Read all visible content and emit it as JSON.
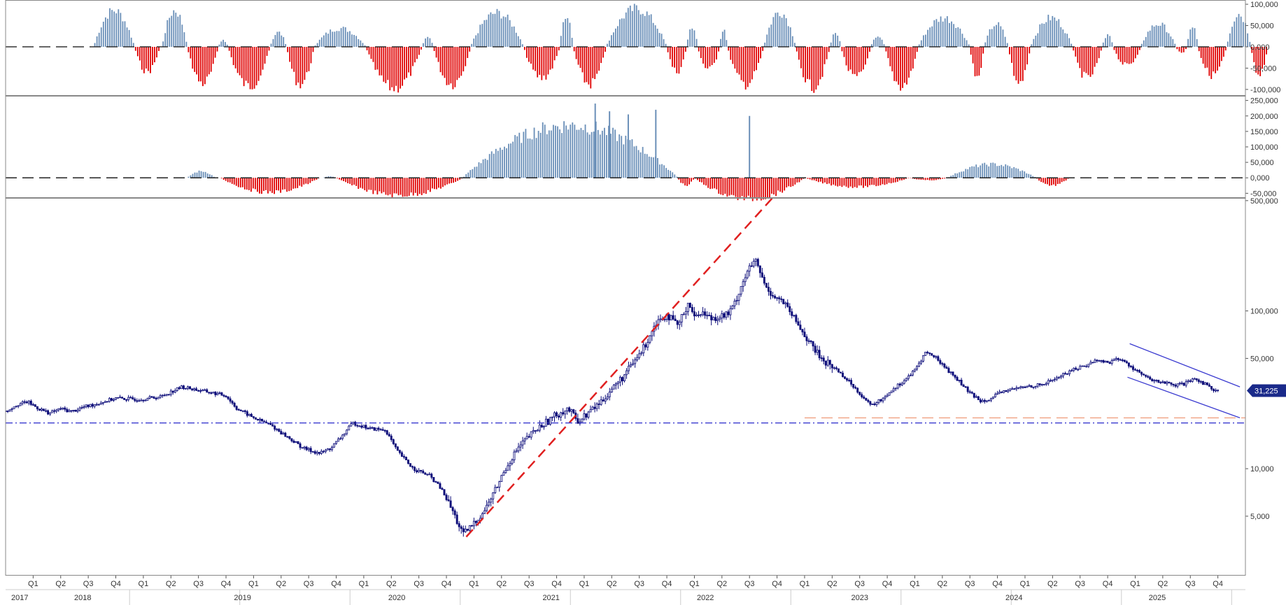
{
  "chart_data": [
    {
      "type": "bar",
      "panel": "oscillator-1",
      "ylim": [
        -115000,
        110000
      ],
      "ytick_labels": [
        "100,000",
        "50,000",
        "0,000",
        "-50,000",
        "-100,000"
      ],
      "ytick_values": [
        100000,
        50000,
        0,
        -50000,
        -100000
      ],
      "zero_line": "dashed",
      "colors": {
        "positive": "#6a8fb8",
        "negative": "#e00000"
      },
      "cycles": [
        {
          "start": 2017.8,
          "end": 2018.17,
          "peak": 88000
        },
        {
          "start": 2018.17,
          "end": 2018.4,
          "peak": -60000
        },
        {
          "start": 2018.42,
          "end": 2018.65,
          "peak": 88000
        },
        {
          "start": 2018.65,
          "end": 2018.93,
          "peak": -88000
        },
        {
          "start": 2018.93,
          "end": 2019.02,
          "peak": 15000
        },
        {
          "start": 2019.02,
          "end": 2019.4,
          "peak": -95000
        },
        {
          "start": 2019.4,
          "end": 2019.55,
          "peak": 35000
        },
        {
          "start": 2019.55,
          "end": 2019.8,
          "peak": -90000
        },
        {
          "start": 2019.8,
          "end": 2020.27,
          "peak": 45000
        },
        {
          "start": 2020.27,
          "end": 2020.78,
          "peak": -100000
        },
        {
          "start": 2020.78,
          "end": 2020.88,
          "peak": 25000
        },
        {
          "start": 2020.88,
          "end": 2021.22,
          "peak": -90000
        },
        {
          "start": 2021.22,
          "end": 2021.7,
          "peak": 82000
        },
        {
          "start": 2021.7,
          "end": 2022.03,
          "peak": -75000
        },
        {
          "start": 2022.03,
          "end": 2022.15,
          "peak": 80000
        },
        {
          "start": 2022.15,
          "end": 2022.45,
          "peak": -90000
        },
        {
          "start": 2022.45,
          "end": 2023.0,
          "peak": 92000
        },
        {
          "start": 2023.0,
          "end": 2023.18,
          "peak": -60000
        },
        {
          "start": 2023.18,
          "end": 2023.28,
          "peak": 50000
        },
        {
          "start": 2023.28,
          "end": 2023.48,
          "peak": -55000
        },
        {
          "start": 2023.48,
          "end": 2023.55,
          "peak": 40000
        },
        {
          "start": 2023.55,
          "end": 2023.88,
          "peak": -90000
        },
        {
          "start": 2023.88,
          "end": 2024.17,
          "peak": 85000
        },
        {
          "start": 2024.17,
          "end": 2024.48,
          "peak": -97000
        },
        {
          "start": 2024.48,
          "end": 2024.58,
          "peak": 35000
        },
        {
          "start": 2024.58,
          "end": 2024.85,
          "peak": -75000
        },
        {
          "start": 2024.85,
          "end": 2024.98,
          "peak": 28000
        },
        {
          "start": 2024.98,
          "end": 2025.28,
          "peak": -95000
        },
        {
          "start": 2025.28,
          "end": 2025.75,
          "peak": 70000
        },
        {
          "start": 2025.75,
          "end": 2025.88,
          "peak": -72000
        },
        {
          "start": 2025.88,
          "end": 2026.1,
          "peak": 55000
        },
        {
          "start": 2026.1,
          "end": 2026.3,
          "peak": -88000
        },
        {
          "start": 2026.3,
          "end": 2026.68,
          "peak": 70000
        },
        {
          "start": 2026.68,
          "end": 2026.95,
          "peak": -75000
        },
        {
          "start": 2026.95,
          "end": 2027.05,
          "peak": 30000
        },
        {
          "start": 2027.05,
          "end": 2027.3,
          "peak": -45000
        },
        {
          "start": 2027.3,
          "end": 2027.62,
          "peak": 55000
        },
        {
          "start": 2027.62,
          "end": 2027.72,
          "peak": -15000
        },
        {
          "start": 2027.72,
          "end": 2027.82,
          "peak": 50000
        },
        {
          "start": 2027.82,
          "end": 2028.08,
          "peak": -68000
        },
        {
          "start": 2028.08,
          "end": 2028.3,
          "peak": 80000
        },
        {
          "start": 2028.3,
          "end": 2028.45,
          "peak": -72000
        }
      ]
    },
    {
      "type": "bar",
      "panel": "oscillator-2",
      "ylim": [
        -65000,
        265000
      ],
      "ytick_labels": [
        "250,000",
        "200,000",
        "150,000",
        "100,000",
        "50,000",
        "0,000",
        "-50,000"
      ],
      "ytick_values": [
        250000,
        200000,
        150000,
        100000,
        50000,
        0,
        -50000
      ],
      "zero_line": "dashed",
      "colors": {
        "positive": "#6a8fb8",
        "negative": "#e00000"
      },
      "cycles": [
        {
          "start": 2018.65,
          "end": 2018.9,
          "peak": 22000
        },
        {
          "start": 2018.95,
          "end": 2019.85,
          "peak": -48000
        },
        {
          "start": 2019.88,
          "end": 2020.0,
          "peak": 5000
        },
        {
          "start": 2020.0,
          "end": 2021.15,
          "peak": -58000
        },
        {
          "start": 2021.15,
          "end": 2023.1,
          "peak": 175000
        },
        {
          "start": 2023.1,
          "end": 2023.25,
          "peak": -25000
        },
        {
          "start": 2023.25,
          "end": 2024.25,
          "peak": -70000
        },
        {
          "start": 2024.25,
          "end": 2025.2,
          "peak": -30000
        },
        {
          "start": 2025.2,
          "end": 2025.55,
          "peak": -8000
        },
        {
          "start": 2025.55,
          "end": 2026.35,
          "peak": 45000
        },
        {
          "start": 2026.35,
          "end": 2026.65,
          "peak": -25000
        }
      ],
      "spikes": [
        {
          "x": 2022.35,
          "value": 240000
        },
        {
          "x": 2022.48,
          "value": 215000
        },
        {
          "x": 2022.65,
          "value": 205000
        },
        {
          "x": 2022.9,
          "value": 220000
        },
        {
          "x": 2023.75,
          "value": 200000
        }
      ]
    },
    {
      "type": "candlestick",
      "panel": "price",
      "yscale": "log",
      "ylim": [
        2100,
        520000
      ],
      "ytick_labels": [
        "500,000",
        "100,000",
        "50,000",
        "10,000",
        "5,000"
      ],
      "ytick_values": [
        500000,
        100000,
        50000,
        10000,
        5000
      ],
      "last_value_label": "31,225",
      "last_value": 31225,
      "candle_color": "#0a0a78",
      "path": [
        [
          2017.0,
          23000
        ],
        [
          2017.1,
          25500
        ],
        [
          2017.2,
          26500
        ],
        [
          2017.3,
          24000
        ],
        [
          2017.4,
          22500
        ],
        [
          2017.5,
          24000
        ],
        [
          2017.6,
          23000
        ],
        [
          2017.7,
          24500
        ],
        [
          2017.8,
          25500
        ],
        [
          2018.0,
          28000
        ],
        [
          2018.2,
          27500
        ],
        [
          2018.4,
          28500
        ],
        [
          2018.6,
          33000
        ],
        [
          2018.8,
          31000
        ],
        [
          2019.0,
          29000
        ],
        [
          2019.1,
          24000
        ],
        [
          2019.25,
          21000
        ],
        [
          2019.4,
          19000
        ],
        [
          2019.55,
          16000
        ],
        [
          2019.7,
          13500
        ],
        [
          2019.85,
          12500
        ],
        [
          2019.95,
          13500
        ],
        [
          2020.05,
          16000
        ],
        [
          2020.15,
          19500
        ],
        [
          2020.3,
          18000
        ],
        [
          2020.45,
          17500
        ],
        [
          2020.55,
          13000
        ],
        [
          2020.7,
          10000
        ],
        [
          2020.85,
          9000
        ],
        [
          2020.95,
          7500
        ],
        [
          2021.05,
          5500
        ],
        [
          2021.15,
          3800
        ],
        [
          2021.25,
          4500
        ],
        [
          2021.35,
          5500
        ],
        [
          2021.45,
          7500
        ],
        [
          2021.55,
          10500
        ],
        [
          2021.65,
          13500
        ],
        [
          2021.75,
          16000
        ],
        [
          2021.85,
          18500
        ],
        [
          2022.0,
          22000
        ],
        [
          2022.1,
          24000
        ],
        [
          2022.2,
          20000
        ],
        [
          2022.3,
          23000
        ],
        [
          2022.4,
          26500
        ],
        [
          2022.5,
          32000
        ],
        [
          2022.6,
          38000
        ],
        [
          2022.7,
          47000
        ],
        [
          2022.8,
          60000
        ],
        [
          2022.9,
          85000
        ],
        [
          2023.0,
          95000
        ],
        [
          2023.1,
          80000
        ],
        [
          2023.2,
          115000
        ],
        [
          2023.25,
          90000
        ],
        [
          2023.3,
          100000
        ],
        [
          2023.4,
          90000
        ],
        [
          2023.55,
          95000
        ],
        [
          2023.6,
          105000
        ],
        [
          2023.7,
          160000
        ],
        [
          2023.75,
          185000
        ],
        [
          2023.8,
          210000
        ],
        [
          2023.9,
          140000
        ],
        [
          2024.0,
          120000
        ],
        [
          2024.05,
          115000
        ],
        [
          2024.2,
          80000
        ],
        [
          2024.3,
          62000
        ],
        [
          2024.4,
          50000
        ],
        [
          2024.55,
          42000
        ],
        [
          2024.7,
          33000
        ],
        [
          2024.85,
          25000
        ],
        [
          2024.95,
          27500
        ],
        [
          2025.05,
          32000
        ],
        [
          2025.15,
          36000
        ],
        [
          2025.25,
          42000
        ],
        [
          2025.35,
          55000
        ],
        [
          2025.45,
          50000
        ],
        [
          2025.55,
          42000
        ],
        [
          2025.65,
          36000
        ],
        [
          2025.75,
          30000
        ],
        [
          2025.85,
          27000
        ],
        [
          2025.95,
          28000
        ],
        [
          2026.05,
          31000
        ],
        [
          2026.15,
          32000
        ],
        [
          2026.3,
          33500
        ],
        [
          2026.4,
          34000
        ],
        [
          2026.55,
          38000
        ],
        [
          2026.7,
          43000
        ],
        [
          2026.8,
          45000
        ],
        [
          2026.9,
          49000
        ],
        [
          2027.0,
          47000
        ],
        [
          2027.1,
          50000
        ],
        [
          2027.2,
          45000
        ],
        [
          2027.3,
          40000
        ],
        [
          2027.4,
          36000
        ],
        [
          2027.5,
          35500
        ],
        [
          2027.6,
          33500
        ],
        [
          2027.7,
          34500
        ],
        [
          2027.8,
          37000
        ],
        [
          2027.9,
          34000
        ],
        [
          2027.95,
          32000
        ],
        [
          2028.0,
          31225
        ]
      ],
      "lines": [
        {
          "type": "trendline",
          "style": "dashed",
          "color": "#e02020",
          "from": [
            2021.18,
            3700
          ],
          "to": [
            2024.0,
            560000
          ]
        },
        {
          "type": "horizontal",
          "style": "dashdot",
          "color": "#3a3ad0",
          "y": 19500
        },
        {
          "type": "horizontal",
          "style": "dashed",
          "color": "#f0a080",
          "from_x": 2024.25,
          "y": 21000
        },
        {
          "type": "channel-top",
          "style": "solid",
          "color": "#3a3ad0",
          "from": [
            2027.2,
            62000
          ],
          "to": [
            2028.2,
            33000
          ]
        },
        {
          "type": "channel-bottom",
          "style": "solid",
          "color": "#3a3ad0",
          "from": [
            2027.18,
            38000
          ],
          "to": [
            2028.2,
            21000
          ]
        }
      ]
    }
  ],
  "x_axis": {
    "range": [
      2017.0,
      2028.25
    ],
    "quarters": [
      {
        "x": 2017.25,
        "label": "Q1"
      },
      {
        "x": 2017.5,
        "label": "Q2"
      },
      {
        "x": 2017.75,
        "label": "Q3"
      },
      {
        "x": 2018.0,
        "label": "Q4"
      },
      {
        "x": 2018.25,
        "label": "Q1"
      },
      {
        "x": 2018.5,
        "label": "Q2"
      },
      {
        "x": 2018.75,
        "label": "Q3"
      },
      {
        "x": 2019.0,
        "label": "Q4"
      },
      {
        "x": 2019.25,
        "label": "Q1"
      },
      {
        "x": 2019.5,
        "label": "Q2"
      },
      {
        "x": 2019.75,
        "label": "Q3"
      },
      {
        "x": 2020.0,
        "label": "Q4"
      },
      {
        "x": 2020.25,
        "label": "Q1"
      },
      {
        "x": 2020.5,
        "label": "Q2"
      },
      {
        "x": 2020.75,
        "label": "Q3"
      },
      {
        "x": 2021.0,
        "label": "Q4"
      },
      {
        "x": 2021.25,
        "label": "Q1"
      },
      {
        "x": 2021.5,
        "label": "Q2"
      },
      {
        "x": 2021.75,
        "label": "Q3"
      },
      {
        "x": 2022.0,
        "label": "Q4"
      },
      {
        "x": 2022.25,
        "label": "Q1"
      },
      {
        "x": 2022.5,
        "label": "Q2"
      },
      {
        "x": 2022.75,
        "label": "Q3"
      },
      {
        "x": 2023.0,
        "label": "Q4"
      },
      {
        "x": 2023.25,
        "label": "Q1"
      },
      {
        "x": 2023.5,
        "label": "Q2"
      },
      {
        "x": 2023.75,
        "label": "Q3"
      },
      {
        "x": 2024.0,
        "label": "Q4"
      },
      {
        "x": 2024.25,
        "label": "Q1"
      },
      {
        "x": 2024.5,
        "label": "Q2"
      },
      {
        "x": 2024.75,
        "label": "Q3"
      },
      {
        "x": 2025.0,
        "label": "Q4"
      },
      {
        "x": 2025.25,
        "label": "Q1"
      },
      {
        "x": 2025.5,
        "label": "Q2"
      },
      {
        "x": 2025.75,
        "label": "Q3"
      },
      {
        "x": 2026.0,
        "label": "Q4"
      },
      {
        "x": 2026.25,
        "label": "Q1"
      },
      {
        "x": 2026.5,
        "label": "Q2"
      },
      {
        "x": 2026.75,
        "label": "Q3"
      },
      {
        "x": 2027.0,
        "label": "Q4"
      },
      {
        "x": 2027.25,
        "label": "Q1"
      },
      {
        "x": 2027.5,
        "label": "Q2"
      },
      {
        "x": 2027.75,
        "label": "Q3"
      },
      {
        "x": 2028.0,
        "label": "Q4"
      }
    ],
    "years": [
      {
        "x": 2017.02,
        "label": "2017"
      },
      {
        "x": 2017.7,
        "label": "2018"
      },
      {
        "x": 2019.15,
        "label": "2019"
      },
      {
        "x": 2020.55,
        "label": "2020"
      },
      {
        "x": 2021.95,
        "label": "2021"
      },
      {
        "x": 2023.35,
        "label": "2022"
      },
      {
        "x": 2024.75,
        "label": "2023"
      },
      {
        "x": 2026.15,
        "label": "2024"
      },
      {
        "x": 2027.45,
        "label": "2025"
      }
    ]
  }
}
